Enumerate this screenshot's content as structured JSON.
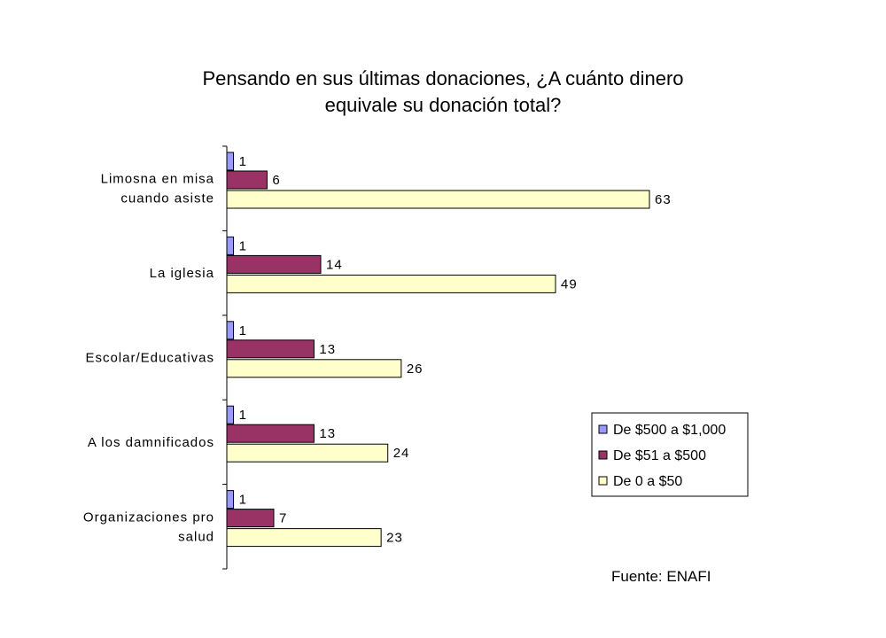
{
  "source_note": "Fuente: ENAFI",
  "chart_data": {
    "type": "bar",
    "orientation": "horizontal",
    "title": [
      "Pensando en sus últimas donaciones, ¿A cuánto dinero",
      "equivale su donación total?"
    ],
    "categories": [
      [
        "Limosna en misa",
        "cuando asiste"
      ],
      [
        "La iglesia"
      ],
      [
        "Escolar/Educativas"
      ],
      [
        "A los damnificados"
      ],
      [
        "Organizaciones pro",
        "salud"
      ]
    ],
    "series": [
      {
        "name": "De $500 a $1,000",
        "color": "#9999ff",
        "values": [
          1,
          1,
          1,
          1,
          1
        ]
      },
      {
        "name": "De $51 a $500",
        "color": "#993366",
        "values": [
          6,
          14,
          13,
          13,
          7
        ]
      },
      {
        "name": "De 0 a $50",
        "color": "#ffffcc",
        "values": [
          63,
          49,
          26,
          24,
          23
        ]
      }
    ],
    "xlim": [
      0,
      70
    ],
    "grid": false,
    "legend_position": "bottom-right",
    "data_labels": true
  }
}
